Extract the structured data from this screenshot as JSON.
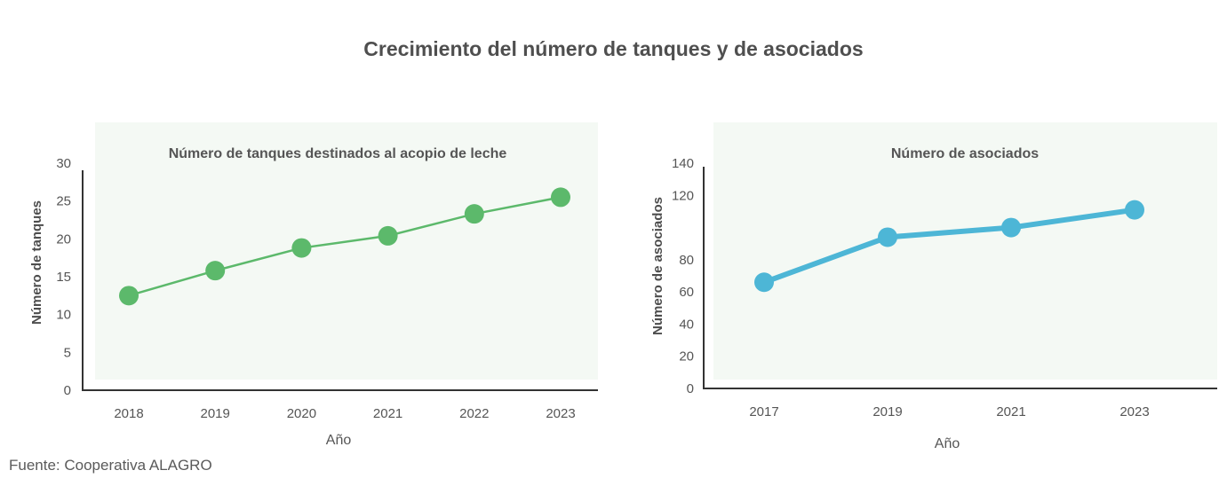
{
  "title": "Crecimiento del número de tanques y de asociados",
  "source": "Fuente: Cooperativa ALAGRO",
  "colors": {
    "panel_bg": "#f4f9f4",
    "axis": "#333333",
    "green": "#5cb96b",
    "blue": "#4db6d6"
  },
  "chart_data": [
    {
      "type": "line",
      "title": "Número de tanques destinados al acopio de leche",
      "xlabel": "Año",
      "ylabel": "Número de tanques",
      "ylim": [
        0,
        30
      ],
      "yticks": [
        0,
        5,
        10,
        15,
        20,
        25,
        30
      ],
      "grid": false,
      "color": "#5cb96b",
      "series": [
        {
          "x": [
            "2018",
            "2019",
            "2020",
            "2021",
            "2022",
            "2023"
          ],
          "values": [
            12.5,
            15.8,
            18.8,
            20.4,
            23.3,
            25.5
          ]
        }
      ]
    },
    {
      "type": "line",
      "title": "Número de asociados",
      "xlabel": "Año",
      "ylabel": "Número de asociados",
      "ylim": [
        0,
        140
      ],
      "yticks": [
        0,
        20,
        40,
        60,
        80,
        100,
        120,
        140
      ],
      "ytick_labels": [
        "0",
        "20",
        "40",
        "60",
        "80",
        "",
        "120",
        "140"
      ],
      "grid": false,
      "color": "#4db6d6",
      "series": [
        {
          "x": [
            "2017",
            "2019",
            "2021",
            "2023"
          ],
          "values": [
            66,
            94,
            100,
            111
          ]
        }
      ]
    }
  ]
}
